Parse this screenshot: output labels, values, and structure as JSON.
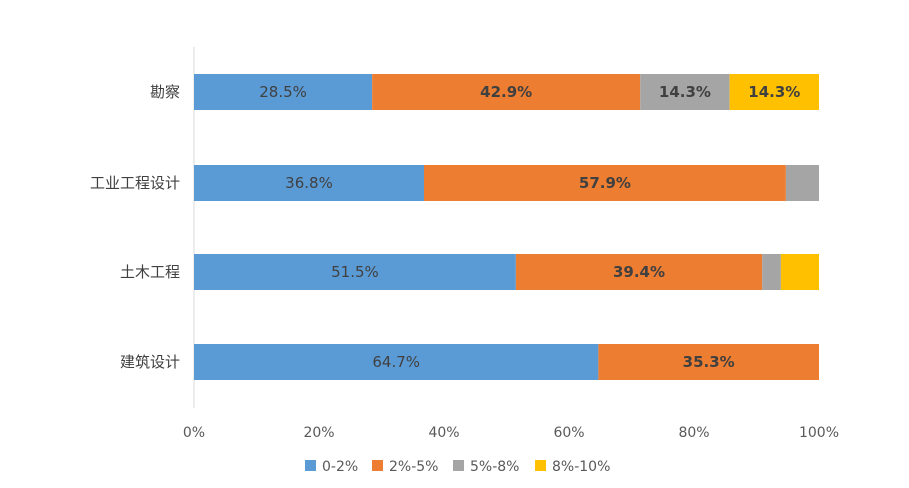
{
  "chart_data": {
    "type": "bar",
    "orientation": "horizontal",
    "stacked": "percent",
    "categories": [
      "勘察",
      "工业工程设计",
      "土木工程",
      "建筑设计"
    ],
    "series": [
      {
        "name": "0-2%",
        "color": "#5B9BD5",
        "values": [
          28.5,
          36.8,
          51.5,
          64.7
        ],
        "labels": [
          "28.5%",
          "36.8%",
          "51.5%",
          "64.7%"
        ],
        "label_color": "#404040",
        "label_bold": false
      },
      {
        "name": "2%-5%",
        "color": "#ED7D31",
        "values": [
          42.9,
          57.9,
          39.4,
          35.3
        ],
        "labels": [
          "42.9%",
          "57.9%",
          "39.4%",
          "35.3%"
        ],
        "label_color": "#404040",
        "label_bold": true
      },
      {
        "name": "5%-8%",
        "color": "#A5A5A5",
        "values": [
          14.3,
          5.3,
          3.0,
          0
        ],
        "labels": [
          "14.3%",
          "",
          "",
          ""
        ],
        "label_color": "#404040",
        "label_bold": true
      },
      {
        "name": "8%-10%",
        "color": "#FFC000",
        "values": [
          14.3,
          0,
          6.1,
          0
        ],
        "labels": [
          "14.3%",
          "",
          "",
          ""
        ],
        "label_color": "#404040",
        "label_bold": true
      }
    ],
    "xlim": [
      0,
      100
    ],
    "x_ticks": [
      "0%",
      "20%",
      "40%",
      "60%",
      "80%",
      "100%"
    ],
    "grid": false,
    "legend_position": "bottom"
  }
}
